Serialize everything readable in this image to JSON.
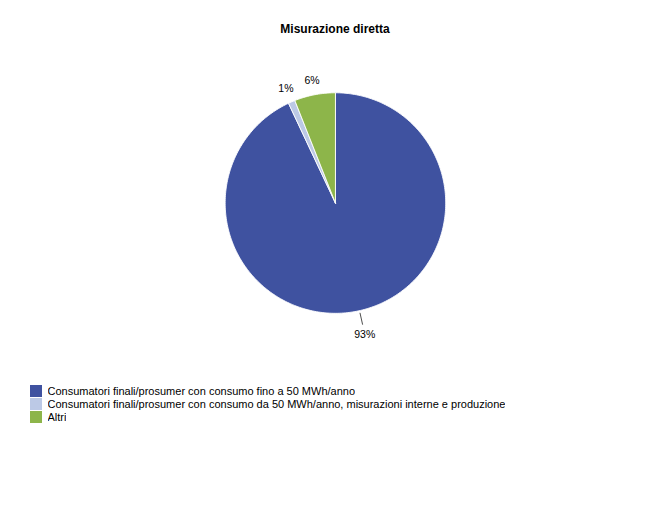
{
  "chart_data": {
    "type": "pie",
    "title": "Misurazione diretta",
    "categories": [
      "Consumatori finali/prosumer con consumo fino a 50 MWh/anno",
      "Consumatori finali/prosumer con consumo da 50 MWh/anno, misurazioni interne e produzione",
      "Altri"
    ],
    "values": [
      93,
      1,
      6
    ],
    "value_labels": [
      "93%",
      "1%",
      "6%"
    ],
    "colors": [
      "#3F52A0",
      "#BCC9E6",
      "#8DB54A"
    ],
    "data_labels": true,
    "legend": "lower left"
  }
}
